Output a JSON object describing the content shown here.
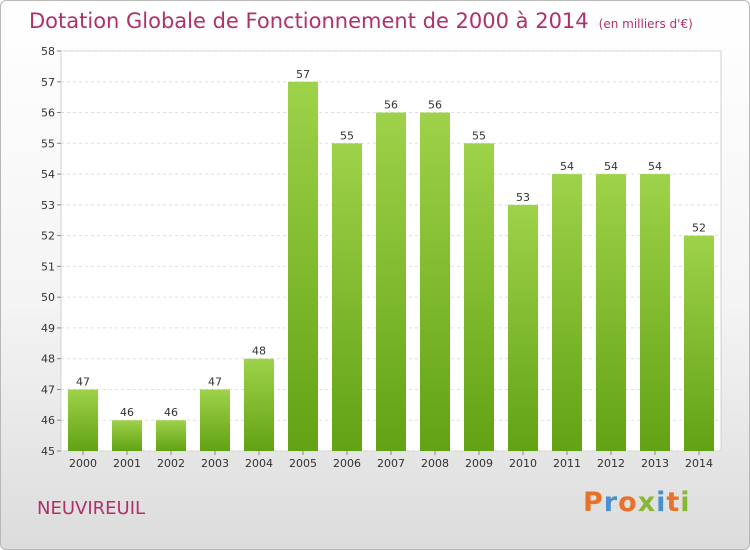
{
  "title": "Dotation Globale de Fonctionnement de 2000 à 2014",
  "subtitle": "(en milliers d'€)",
  "place_name": "NEUVIREUIL",
  "logo": {
    "text": "Proxiti",
    "colors": [
      "#e8722a",
      "#4a8fd0",
      "#e8722a",
      "#88b832",
      "#4a8fd0",
      "#e8722a",
      "#88b832"
    ]
  },
  "colors": {
    "title": "#b0306a",
    "bar_top": "#9ed24a",
    "bar_bottom": "#62a214"
  },
  "chart_data": {
    "type": "bar",
    "categories": [
      "2000",
      "2001",
      "2002",
      "2003",
      "2004",
      "2005",
      "2006",
      "2007",
      "2008",
      "2009",
      "2010",
      "2011",
      "2012",
      "2013",
      "2014"
    ],
    "values": [
      47,
      46,
      46,
      47,
      48,
      57,
      55,
      56,
      56,
      55,
      53,
      54,
      54,
      54,
      52
    ],
    "ylim": [
      45,
      58
    ],
    "yticks": [
      45,
      46,
      47,
      48,
      49,
      50,
      51,
      52,
      53,
      54,
      55,
      56,
      57,
      58
    ],
    "grid": true,
    "legend": "none"
  }
}
